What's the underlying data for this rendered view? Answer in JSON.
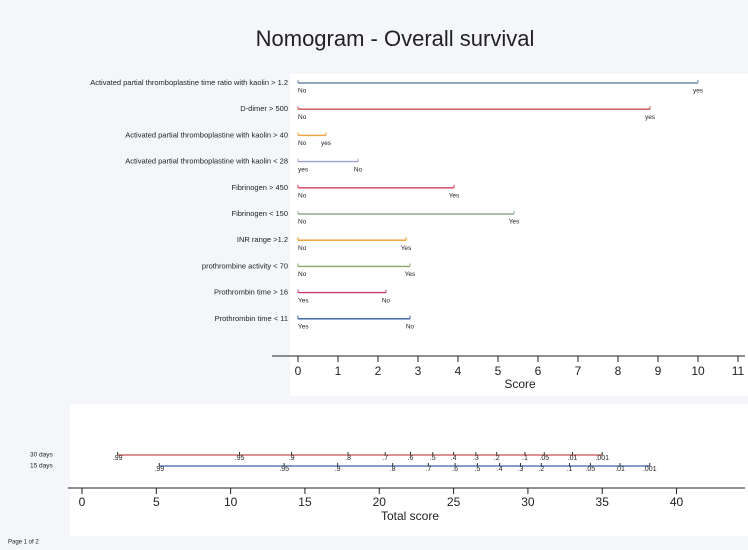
{
  "chart_data": {
    "type": "nomogram",
    "title": "Nomogram - Overall survival",
    "variables": [
      {
        "name": "Activated partial thromboplastine time ratio with kaolin > 1.2",
        "color": "#7088a8",
        "levels": [
          {
            "label": "No",
            "score": 0
          },
          {
            "label": "yes",
            "score": 10
          }
        ]
      },
      {
        "name": "D-dimer > 500",
        "color": "#c8504a",
        "levels": [
          {
            "label": "No",
            "score": 0
          },
          {
            "label": "yes",
            "score": 8.8
          }
        ]
      },
      {
        "name": "Activated partial thromboplastine with kaolin > 40",
        "color": "#f0a040",
        "levels": [
          {
            "label": "No",
            "score": 0
          },
          {
            "label": "yes",
            "score": 0.7
          }
        ]
      },
      {
        "name": "Activated partial thromboplastine with kaolin < 28",
        "color": "#a0a0d8",
        "levels": [
          {
            "label": "yes",
            "score": 0
          },
          {
            "label": "No",
            "score": 1.5
          }
        ]
      },
      {
        "name": "Fibrinogen > 450",
        "color": "#d04060",
        "levels": [
          {
            "label": "No",
            "score": 0
          },
          {
            "label": "Yes",
            "score": 3.9
          }
        ]
      },
      {
        "name": "Fibrinogen < 150",
        "color": "#90a890",
        "levels": [
          {
            "label": "No",
            "score": 0
          },
          {
            "label": "Yes",
            "score": 5.4
          }
        ]
      },
      {
        "name": "INR range >1.2",
        "color": "#f09a20",
        "levels": [
          {
            "label": "No",
            "score": 0
          },
          {
            "label": "Yes",
            "score": 2.7
          }
        ]
      },
      {
        "name": "prothrombine activity < 70",
        "color": "#88a860",
        "levels": [
          {
            "label": "No",
            "score": 0
          },
          {
            "label": "Yes",
            "score": 2.8
          }
        ]
      },
      {
        "name": "Prothrombin time > 16",
        "color": "#c83c70",
        "levels": [
          {
            "label": "Yes",
            "score": 0
          },
          {
            "label": "No",
            "score": 2.2
          }
        ]
      },
      {
        "name": "Prothrombin time < 11",
        "color": "#2f5c9c",
        "levels": [
          {
            "label": "Yes",
            "score": 0
          },
          {
            "label": "No",
            "score": 2.8
          }
        ]
      }
    ],
    "score_axis": {
      "label": "Score",
      "xlim": [
        0,
        11
      ],
      "xticks": [
        0,
        1,
        2,
        3,
        4,
        5,
        6,
        7,
        8,
        9,
        10,
        11
      ]
    },
    "total_axis": {
      "label": "Total score",
      "xlim": [
        0,
        44
      ],
      "xticks": [
        0,
        5,
        10,
        15,
        20,
        25,
        30,
        35,
        40
      ]
    },
    "survival": [
      {
        "name": "30 days",
        "color": "#c8504a",
        "probabilities": [
          {
            "value": 0.99,
            "label": ".99"
          },
          {
            "value": 0.95,
            "label": ".95"
          },
          {
            "value": 0.9,
            "label": ".9"
          },
          {
            "value": 0.8,
            "label": ".8"
          },
          {
            "value": 0.7,
            "label": ".7"
          },
          {
            "value": 0.6,
            "label": ".6"
          },
          {
            "value": 0.5,
            "label": ".5"
          },
          {
            "value": 0.4,
            "label": ".4"
          },
          {
            "value": 0.3,
            "label": ".3"
          },
          {
            "value": 0.2,
            "label": ".2"
          },
          {
            "value": 0.1,
            "label": ".1"
          },
          {
            "value": 0.05,
            "label": ".05"
          },
          {
            "value": 0.01,
            "label": ".01"
          },
          {
            "value": 0.001,
            "label": ".001"
          }
        ],
        "positions": [
          2.4,
          10.6,
          14.1,
          17.9,
          20.4,
          22.1,
          23.6,
          25.0,
          26.5,
          27.9,
          29.8,
          31.1,
          33.0,
          35.0
        ]
      },
      {
        "name": "15 days",
        "color": "#3a64a8",
        "probabilities": [
          {
            "value": 0.99,
            "label": ".99"
          },
          {
            "value": 0.95,
            "label": ".95"
          },
          {
            "value": 0.9,
            "label": ".9"
          },
          {
            "value": 0.8,
            "label": ".8"
          },
          {
            "value": 0.7,
            "label": ".7"
          },
          {
            "value": 0.6,
            "label": ".6"
          },
          {
            "value": 0.5,
            "label": ".5"
          },
          {
            "value": 0.4,
            "label": ".4"
          },
          {
            "value": 0.3,
            "label": ".3"
          },
          {
            "value": 0.2,
            "label": ".2"
          },
          {
            "value": 0.1,
            "label": ".1"
          },
          {
            "value": 0.05,
            "label": ".05"
          },
          {
            "value": 0.01,
            "label": ".01"
          },
          {
            "value": 0.001,
            "label": ".001"
          }
        ],
        "positions": [
          5.2,
          13.6,
          17.2,
          20.9,
          23.3,
          25.1,
          26.6,
          28.1,
          29.5,
          30.9,
          32.8,
          34.2,
          36.2,
          38.2
        ]
      }
    ],
    "footer": "Page 1 of 2"
  }
}
